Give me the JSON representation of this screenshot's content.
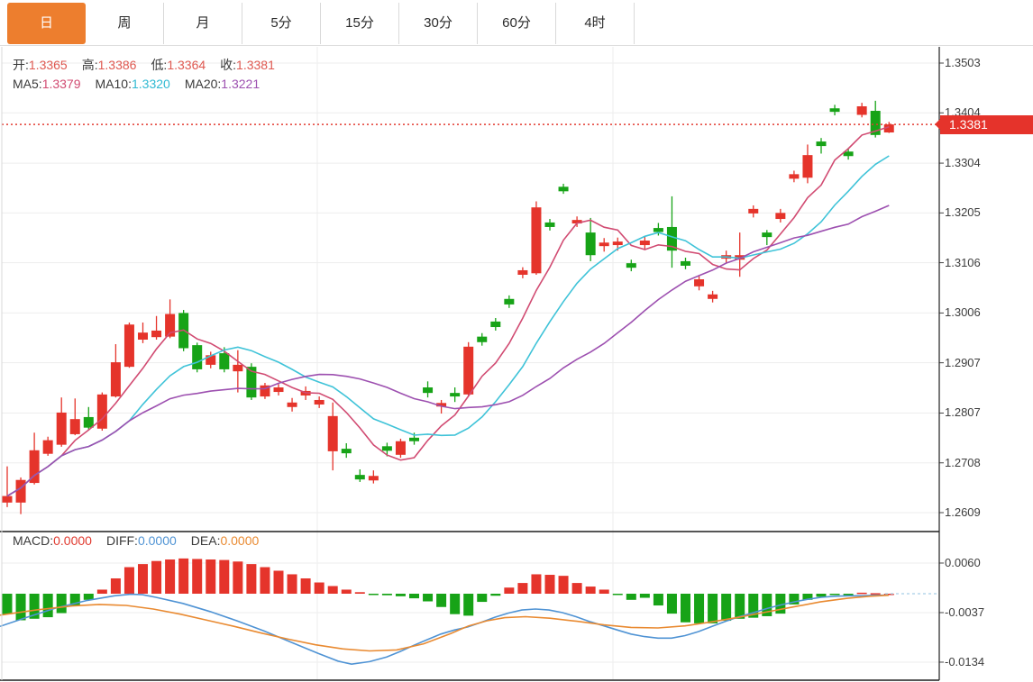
{
  "tabs": {
    "items": [
      {
        "label": "日",
        "name": "day",
        "active": true
      },
      {
        "label": "周",
        "name": "week",
        "active": false
      },
      {
        "label": "月",
        "name": "month",
        "active": false
      },
      {
        "label": "5分",
        "name": "5min",
        "active": false
      },
      {
        "label": "15分",
        "name": "15min",
        "active": false
      },
      {
        "label": "30分",
        "name": "30min",
        "active": false
      },
      {
        "label": "60分",
        "name": "60min",
        "active": false
      },
      {
        "label": "4时",
        "name": "4hour",
        "active": false
      }
    ]
  },
  "indicators": {
    "ohlc": {
      "open_label": "开:",
      "open": "1.3365",
      "high_label": "高:",
      "high": "1.3386",
      "low_label": "低:",
      "low": "1.3364",
      "close_label": "收:",
      "close": "1.3381"
    },
    "ma": [
      {
        "label": "MA5:",
        "value": "1.3379",
        "color": "#d14b72"
      },
      {
        "label": "MA10:",
        "value": "1.3320",
        "color": "#2fb9d2"
      },
      {
        "label": "MA20:",
        "value": "1.3221",
        "color": "#9d50b0"
      }
    ],
    "macd": [
      {
        "label": "MACD:",
        "value": "0.0000",
        "color": "#e03a2f"
      },
      {
        "label": "DIFF:",
        "value": "0.0000",
        "color": "#4f93d4"
      },
      {
        "label": "DEA:",
        "value": "0.0000",
        "color": "#e98a31"
      }
    ]
  },
  "price_tag": {
    "value": "1.3381"
  },
  "colors": {
    "up": "#e5342b",
    "down": "#17a317",
    "ma5": "#d14b72",
    "ma10": "#3fc3d8",
    "ma20": "#9d50b0",
    "diff": "#4f93d4",
    "dea": "#e98a31",
    "tab_active": "#ed7e2e",
    "price_tag_bg": "#e5332b",
    "dotted_line": "#e23b30",
    "zero_dash": "#a8cfe8",
    "grid": "#ededed",
    "border_dark": "#1f1f1f",
    "axis_text": "#3d3d3d"
  },
  "chart_data": [
    {
      "type": "candlestick",
      "y_axis_labels": [
        "1.3503",
        "1.3404",
        "1.3304",
        "1.3205",
        "1.3106",
        "1.3006",
        "1.2907",
        "1.2807",
        "1.2708",
        "1.2609"
      ],
      "ylim": [
        1.2609,
        1.3503
      ],
      "current_price": 1.3381,
      "ma_periods": [
        5,
        10,
        20
      ],
      "candles": [
        [
          1.2629,
          1.2701,
          1.262,
          1.2642
        ],
        [
          1.2629,
          1.2679,
          1.2606,
          1.2674
        ],
        [
          1.2668,
          1.2768,
          1.2665,
          1.2733
        ],
        [
          1.2726,
          1.276,
          1.2722,
          1.2753
        ],
        [
          1.2744,
          1.2838,
          1.274,
          1.2808
        ],
        [
          1.2765,
          1.2836,
          1.2763,
          1.2795
        ],
        [
          1.2799,
          1.2819,
          1.2774,
          1.2778
        ],
        [
          1.2776,
          1.2848,
          1.2772,
          1.2844
        ],
        [
          1.284,
          1.2944,
          1.2838,
          1.2908
        ],
        [
          1.2899,
          1.2987,
          1.2897,
          1.2983
        ],
        [
          1.2953,
          1.2987,
          1.2946,
          1.2967
        ],
        [
          1.2958,
          1.3,
          1.2953,
          1.2971
        ],
        [
          1.2959,
          1.3033,
          1.2956,
          1.3004
        ],
        [
          1.3006,
          1.3012,
          1.293,
          1.2936
        ],
        [
          1.2942,
          1.2947,
          1.2888,
          1.2894
        ],
        [
          1.2903,
          1.2929,
          1.2896,
          1.2922
        ],
        [
          1.2926,
          1.2938,
          1.2888,
          1.2894
        ],
        [
          1.289,
          1.2932,
          1.2848,
          1.2903
        ],
        [
          1.2899,
          1.2906,
          1.2833,
          1.2838
        ],
        [
          1.284,
          1.2867,
          1.2835,
          1.2862
        ],
        [
          1.2849,
          1.2865,
          1.2842,
          1.2858
        ],
        [
          1.2819,
          1.2837,
          1.281,
          1.2828
        ],
        [
          1.2842,
          1.286,
          1.2833,
          1.2851
        ],
        [
          1.2824,
          1.284,
          1.2817,
          1.2833
        ],
        [
          1.2731,
          1.2828,
          1.2693,
          1.2801
        ],
        [
          1.2736,
          1.2747,
          1.2718,
          1.2727
        ],
        [
          1.2684,
          1.2695,
          1.267,
          1.2675
        ],
        [
          1.2673,
          1.2693,
          1.2667,
          1.2682
        ],
        [
          1.2741,
          1.2748,
          1.2721,
          1.2732
        ],
        [
          1.2724,
          1.2756,
          1.2718,
          1.2751
        ],
        [
          1.2758,
          1.2768,
          1.2744,
          1.2751
        ],
        [
          1.2858,
          1.287,
          1.2838,
          1.2847
        ],
        [
          1.282,
          1.2833,
          1.2806,
          1.2827
        ],
        [
          1.2847,
          1.2858,
          1.2829,
          1.284
        ],
        [
          1.2844,
          1.2948,
          1.284,
          1.2939
        ],
        [
          1.2959,
          1.2966,
          1.2941,
          1.2948
        ],
        [
          1.2989,
          1.2996,
          1.2971,
          1.2978
        ],
        [
          1.3034,
          1.3041,
          1.3016,
          1.3023
        ],
        [
          1.3082,
          1.3097,
          1.3075,
          1.3091
        ],
        [
          1.3085,
          1.3228,
          1.3082,
          1.3216
        ],
        [
          1.3186,
          1.3193,
          1.317,
          1.3177
        ],
        [
          1.3257,
          1.3263,
          1.3243,
          1.3248
        ],
        [
          1.3184,
          1.3198,
          1.3177,
          1.3191
        ],
        [
          1.3166,
          1.3195,
          1.3109,
          1.3121
        ],
        [
          1.3139,
          1.3155,
          1.3128,
          1.3146
        ],
        [
          1.3141,
          1.3156,
          1.313,
          1.3148
        ],
        [
          1.3105,
          1.3112,
          1.3089,
          1.3096
        ],
        [
          1.3141,
          1.3159,
          1.3132,
          1.315
        ],
        [
          1.3175,
          1.3185,
          1.316,
          1.3167
        ],
        [
          1.3177,
          1.3238,
          1.3096,
          1.313
        ],
        [
          1.3109,
          1.3116,
          1.3093,
          1.31
        ],
        [
          1.3059,
          1.308,
          1.3051,
          1.3073
        ],
        [
          1.3034,
          1.305,
          1.3027,
          1.3043
        ],
        [
          1.3114,
          1.313,
          1.3105,
          1.3121
        ],
        [
          1.3112,
          1.3166,
          1.3078,
          1.3121
        ],
        [
          1.3204,
          1.322,
          1.3196,
          1.3213
        ],
        [
          1.3166,
          1.3171,
          1.3141,
          1.3157
        ],
        [
          1.3193,
          1.3213,
          1.3186,
          1.3205
        ],
        [
          1.3273,
          1.3289,
          1.3266,
          1.3282
        ],
        [
          1.3275,
          1.3341,
          1.3264,
          1.332
        ],
        [
          1.3347,
          1.3354,
          1.3323,
          1.3338
        ],
        [
          1.3413,
          1.342,
          1.3399,
          1.3406
        ],
        [
          1.3327,
          1.3334,
          1.3311,
          1.3318
        ],
        [
          1.34,
          1.3424,
          1.3395,
          1.3417
        ],
        [
          1.3408,
          1.3428,
          1.3355,
          1.336
        ],
        [
          1.3365,
          1.3386,
          1.3364,
          1.3381
        ]
      ]
    },
    {
      "type": "macd",
      "y_axis_labels": [
        "0.0060",
        "-0.0037",
        "-0.0134"
      ],
      "histogram": [
        -0.004,
        -0.0052,
        -0.0049,
        -0.0046,
        -0.0038,
        -0.0024,
        -0.0012,
        0.0008,
        0.003,
        0.0052,
        0.0058,
        0.0064,
        0.0067,
        0.0069,
        0.0068,
        0.0067,
        0.0066,
        0.0063,
        0.0058,
        0.0052,
        0.0045,
        0.0038,
        0.003,
        0.0022,
        0.0015,
        0.0008,
        0.0003,
        -0.0001,
        -0.0003,
        -0.0005,
        -0.0009,
        -0.0015,
        -0.0026,
        -0.004,
        -0.0043,
        -0.0016,
        -0.0004,
        0.0012,
        0.0021,
        0.0038,
        0.0037,
        0.0035,
        0.0021,
        0.0014,
        0.0008,
        -0.0001,
        -0.0012,
        -0.0008,
        -0.0023,
        -0.0039,
        -0.0056,
        -0.0058,
        -0.0058,
        -0.0053,
        -0.0049,
        -0.0047,
        -0.0044,
        -0.0039,
        -0.0021,
        -0.0012,
        -0.0006,
        -0.0002,
        -0.0003,
        0.0002,
        0.0001,
        0.0
      ],
      "diff_line": [
        [
          0,
          -0.0064
        ],
        [
          30,
          -0.0046
        ],
        [
          62,
          -0.0028
        ],
        [
          97,
          -0.0013
        ],
        [
          127,
          -0.0004
        ],
        [
          145,
          -0.0001
        ],
        [
          158,
          -0.0002
        ],
        [
          173,
          -0.0007
        ],
        [
          203,
          -0.0019
        ],
        [
          233,
          -0.0035
        ],
        [
          263,
          -0.0053
        ],
        [
          293,
          -0.0073
        ],
        [
          323,
          -0.0095
        ],
        [
          353,
          -0.0117
        ],
        [
          375,
          -0.0132
        ],
        [
          390,
          -0.0138
        ],
        [
          410,
          -0.0133
        ],
        [
          429,
          -0.0124
        ],
        [
          444,
          -0.0113
        ],
        [
          459,
          -0.0101
        ],
        [
          474,
          -0.009
        ],
        [
          489,
          -0.0079
        ],
        [
          504,
          -0.0071
        ],
        [
          519,
          -0.0065
        ],
        [
          534,
          -0.0056
        ],
        [
          549,
          -0.0046
        ],
        [
          564,
          -0.0038
        ],
        [
          579,
          -0.0032
        ],
        [
          594,
          -0.003
        ],
        [
          609,
          -0.0032
        ],
        [
          624,
          -0.0037
        ],
        [
          639,
          -0.0045
        ],
        [
          655,
          -0.0055
        ],
        [
          670,
          -0.0063
        ],
        [
          685,
          -0.0071
        ],
        [
          700,
          -0.0079
        ],
        [
          715,
          -0.0084
        ],
        [
          730,
          -0.0087
        ],
        [
          745,
          -0.0087
        ],
        [
          760,
          -0.0082
        ],
        [
          775,
          -0.0074
        ],
        [
          790,
          -0.0064
        ],
        [
          805,
          -0.0054
        ],
        [
          820,
          -0.0045
        ],
        [
          836,
          -0.0037
        ],
        [
          851,
          -0.0029
        ],
        [
          866,
          -0.0022
        ],
        [
          881,
          -0.0016
        ],
        [
          896,
          -0.0011
        ],
        [
          911,
          -0.0007
        ],
        [
          926,
          -0.0005
        ],
        [
          941,
          -0.0004
        ],
        [
          956,
          -0.0004
        ],
        [
          971,
          -0.0003
        ],
        [
          986,
          -0.0003
        ]
      ],
      "dea_line": [
        [
          0,
          -0.0042
        ],
        [
          40,
          -0.0032
        ],
        [
          80,
          -0.0024
        ],
        [
          110,
          -0.0021
        ],
        [
          140,
          -0.0023
        ],
        [
          170,
          -0.003
        ],
        [
          200,
          -0.004
        ],
        [
          230,
          -0.0052
        ],
        [
          260,
          -0.0064
        ],
        [
          290,
          -0.0077
        ],
        [
          320,
          -0.0089
        ],
        [
          350,
          -0.01
        ],
        [
          380,
          -0.0108
        ],
        [
          410,
          -0.0112
        ],
        [
          440,
          -0.011
        ],
        [
          470,
          -0.0098
        ],
        [
          500,
          -0.0078
        ],
        [
          520,
          -0.0063
        ],
        [
          540,
          -0.0053
        ],
        [
          560,
          -0.0047
        ],
        [
          583,
          -0.0045
        ],
        [
          610,
          -0.0048
        ],
        [
          640,
          -0.0054
        ],
        [
          670,
          -0.0061
        ],
        [
          700,
          -0.0066
        ],
        [
          730,
          -0.0067
        ],
        [
          760,
          -0.0063
        ],
        [
          790,
          -0.0055
        ],
        [
          820,
          -0.0046
        ],
        [
          850,
          -0.0036
        ],
        [
          880,
          -0.0026
        ],
        [
          910,
          -0.0016
        ],
        [
          940,
          -0.0009
        ],
        [
          965,
          -0.0005
        ],
        [
          986,
          -0.0003
        ]
      ]
    }
  ]
}
